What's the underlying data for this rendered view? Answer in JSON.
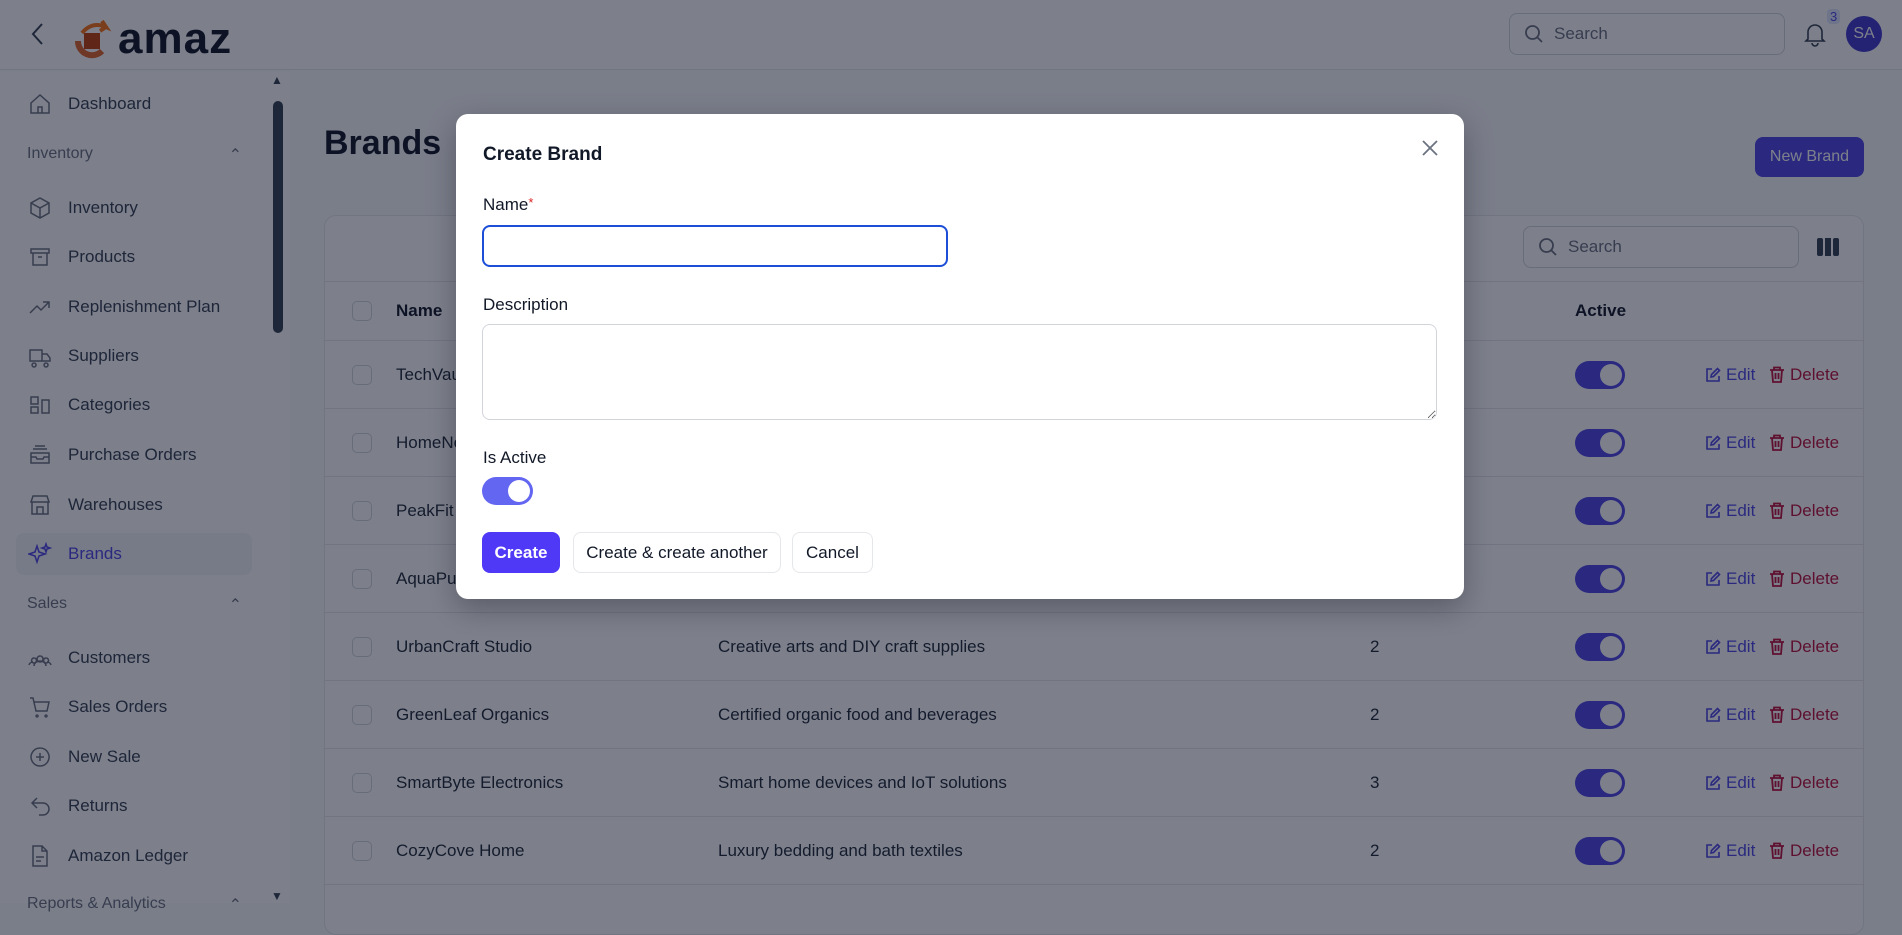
{
  "header": {
    "logo_text": "amaz",
    "search_placeholder": "Search",
    "notification_count": "3",
    "avatar_initials": "SA"
  },
  "sidebar": {
    "items": [
      {
        "label": "Dashboard",
        "icon": "home-icon"
      },
      {
        "label": "Inventory",
        "icon": "cube-icon"
      },
      {
        "label": "Products",
        "icon": "archive-icon"
      },
      {
        "label": "Replenishment Plan",
        "icon": "trending-up-icon"
      },
      {
        "label": "Suppliers",
        "icon": "truck-icon"
      },
      {
        "label": "Categories",
        "icon": "shapes-icon"
      },
      {
        "label": "Purchase Orders",
        "icon": "inbox-stack-icon"
      },
      {
        "label": "Warehouses",
        "icon": "storefront-icon"
      },
      {
        "label": "Brands",
        "icon": "sparkles-icon",
        "active": true
      },
      {
        "label": "Customers",
        "icon": "users-icon"
      },
      {
        "label": "Sales Orders",
        "icon": "cart-icon"
      },
      {
        "label": "New Sale",
        "icon": "plus-circle-icon"
      },
      {
        "label": "Returns",
        "icon": "return-arrow-icon"
      },
      {
        "label": "Amazon Ledger",
        "icon": "document-icon"
      }
    ],
    "groups": [
      "Inventory",
      "Sales",
      "Reports & Analytics"
    ]
  },
  "page": {
    "title": "Brands",
    "new_button": "New Brand",
    "search_placeholder": "Search"
  },
  "table": {
    "columns": [
      "Name",
      "Active"
    ],
    "actions": {
      "edit": "Edit",
      "delete": "Delete"
    },
    "rows": [
      {
        "name": "TechVau",
        "description": "",
        "count": "",
        "active": true
      },
      {
        "name": "HomeNe",
        "description": "",
        "count": "",
        "active": true
      },
      {
        "name": "PeakFit",
        "description": "",
        "count": "",
        "active": true
      },
      {
        "name": "AquaPu",
        "description": "",
        "count": "",
        "active": true
      },
      {
        "name": "UrbanCraft Studio",
        "description": "Creative arts and DIY craft supplies",
        "count": "2",
        "active": true
      },
      {
        "name": "GreenLeaf Organics",
        "description": "Certified organic food and beverages",
        "count": "2",
        "active": true
      },
      {
        "name": "SmartByte Electronics",
        "description": "Smart home devices and IoT solutions",
        "count": "3",
        "active": true
      },
      {
        "name": "CozyCove Home",
        "description": "Luxury bedding and bath textiles",
        "count": "2",
        "active": true
      }
    ]
  },
  "modal": {
    "title": "Create Brand",
    "name_label": "Name",
    "required_mark": "*",
    "name_value": "",
    "description_label": "Description",
    "description_value": "",
    "active_label": "Is Active",
    "is_active": true,
    "create": "Create",
    "create_another": "Create & create another",
    "cancel": "Cancel"
  },
  "colors": {
    "primary": "#4f46e5",
    "create_button": "#4f39f6",
    "delete": "#be123c",
    "focus_border": "#1d4ed8"
  }
}
